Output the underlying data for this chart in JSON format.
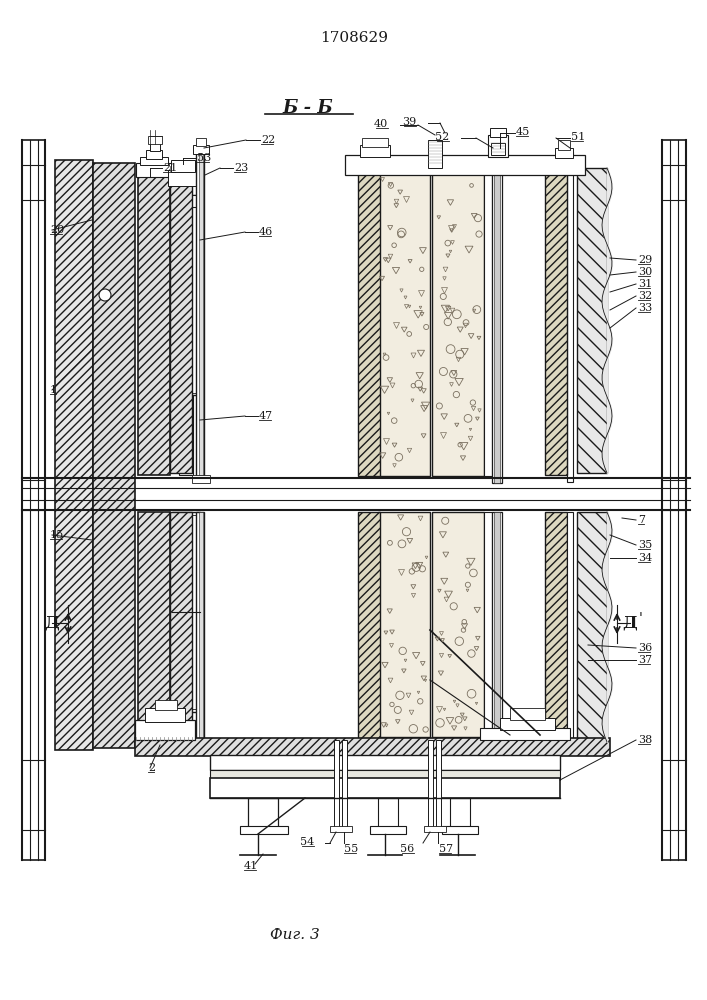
{
  "title": "1708629",
  "section_label": "Б - Б",
  "fig_label": "Фиг. 3",
  "line_color": "#1a1a1a",
  "bg_color": "#ffffff"
}
